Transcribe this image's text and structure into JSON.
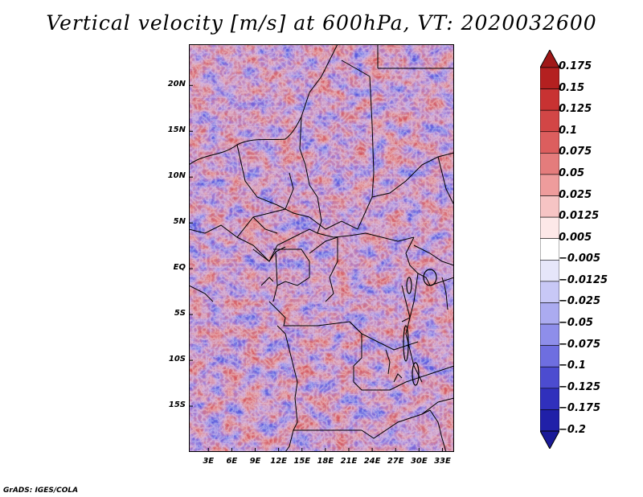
{
  "title": "Vertical velocity [m/s] at 600hPa, VT: 2020032600",
  "footer": "GrADS: IGES/COLA",
  "map": {
    "lat_labels": [
      "20N",
      "15N",
      "10N",
      "5N",
      "EQ",
      "5S",
      "10S",
      "15S"
    ],
    "lat_values": [
      20,
      15,
      10,
      5,
      0,
      -5,
      -10,
      -15
    ],
    "lon_labels": [
      "3E",
      "6E",
      "9E",
      "12E",
      "15E",
      "18E",
      "21E",
      "24E",
      "27E",
      "30E",
      "33E"
    ],
    "lon_values": [
      3,
      6,
      9,
      12,
      15,
      18,
      21,
      24,
      27,
      30,
      33
    ],
    "lon_range": [
      0.5,
      34.5
    ],
    "lat_range": [
      -20,
      24.5
    ]
  },
  "colorbar": {
    "labels": [
      "0.175",
      "0.15",
      "0.125",
      "0.1",
      "0.075",
      "0.05",
      "0.025",
      "0.0125",
      "0.005",
      "−0.005",
      "−0.0125",
      "−0.025",
      "−0.05",
      "−0.075",
      "−0.1",
      "−0.125",
      "−0.175",
      "−0.2"
    ],
    "colors": [
      "#a01818",
      "#b42020",
      "#c83232",
      "#d24646",
      "#dc5e5e",
      "#e47c7c",
      "#ee9c9c",
      "#f6c4c4",
      "#fde8e8",
      "#ffffff",
      "#e6e6fa",
      "#c8c8f6",
      "#ababf0",
      "#8e8eea",
      "#6e6ee0",
      "#4c4cd0",
      "#3030bc",
      "#2020a8",
      "#1a1a98"
    ]
  }
}
